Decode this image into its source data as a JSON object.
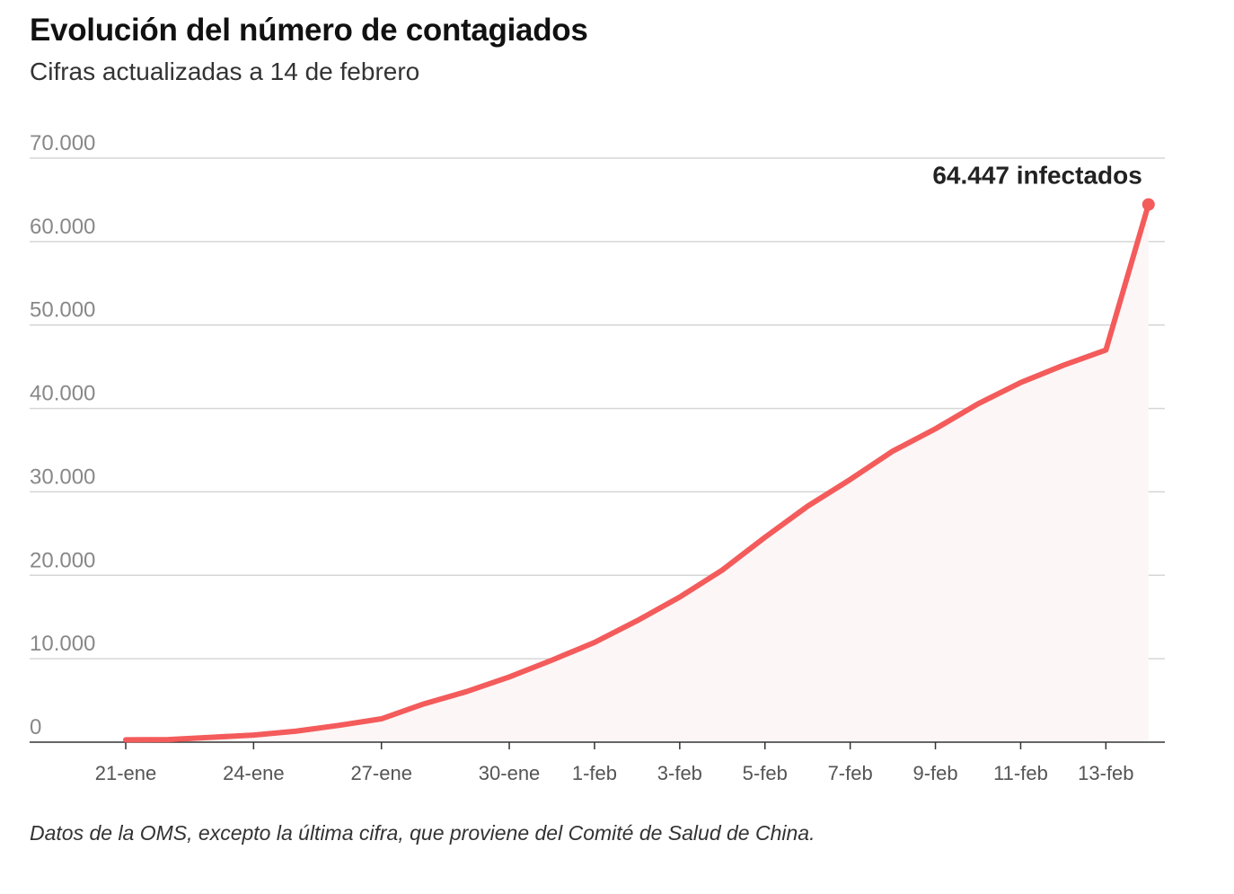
{
  "title": "Evolución del número de contagiados",
  "subtitle": "Cifras actualizadas a 14 de febrero",
  "source": "Datos de la OMS, excepto la última cifra, que proviene del Comité de Salud de China.",
  "colors": {
    "line": "#f45b5b",
    "area": "#fdf6f6",
    "grid": "#d6d6d6",
    "tick_text": "#888888",
    "axis": "#333333"
  },
  "chart_data": {
    "type": "area",
    "title": "Evolución del número de contagiados",
    "subtitle": "Cifras actualizadas a 14 de febrero",
    "xlabel": "",
    "ylabel": "",
    "ylim": [
      0,
      70000
    ],
    "grid": true,
    "y_ticks": [
      0,
      10000,
      20000,
      30000,
      40000,
      50000,
      60000,
      70000
    ],
    "y_tick_labels": [
      "0",
      "10.000",
      "20.000",
      "30.000",
      "40.000",
      "50.000",
      "60.000",
      "70.000"
    ],
    "x_tick_labels": [
      "21-ene",
      "24-ene",
      "27-ene",
      "30-ene",
      "1-feb",
      "3-feb",
      "5-feb",
      "7-feb",
      "9-feb",
      "11-feb",
      "13-feb"
    ],
    "x_tick_dates": [
      "21-ene",
      "24-ene",
      "27-ene",
      "30-ene",
      "1-feb",
      "3-feb",
      "5-feb",
      "7-feb",
      "9-feb",
      "11-feb",
      "13-feb"
    ],
    "dates": [
      "21-ene",
      "22-ene",
      "23-ene",
      "24-ene",
      "25-ene",
      "26-ene",
      "27-ene",
      "28-ene",
      "29-ene",
      "30-ene",
      "31-ene",
      "1-feb",
      "2-feb",
      "3-feb",
      "4-feb",
      "5-feb",
      "6-feb",
      "7-feb",
      "8-feb",
      "9-feb",
      "10-feb",
      "11-feb",
      "12-feb",
      "13-feb",
      "14-feb"
    ],
    "values": [
      282,
      314,
      581,
      846,
      1320,
      2014,
      2798,
      4593,
      6065,
      7818,
      9826,
      11953,
      14557,
      17391,
      20630,
      24554,
      28276,
      31481,
      34886,
      37558,
      40554,
      43103,
      45171,
      46997,
      64447
    ],
    "annotation": {
      "date": "14-feb",
      "value": 64447,
      "label": "64.447 infectados"
    }
  }
}
